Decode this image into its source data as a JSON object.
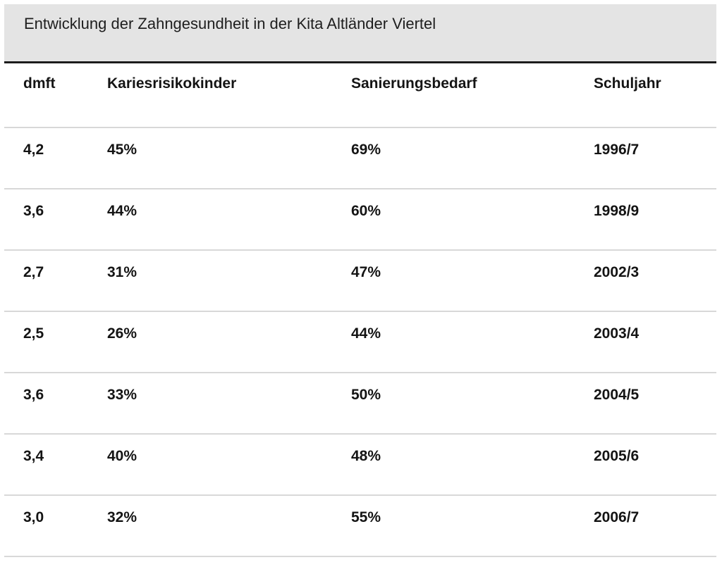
{
  "caption": "Entwicklung der Zahngesundheit in der Kita Altländer Viertel",
  "table": {
    "headers": [
      "dmft",
      "Kariesrisikokinder",
      "Sanierungsbedarf",
      "Schuljahr"
    ],
    "rows": [
      [
        "4,2",
        "45%",
        "69%",
        "1996/7"
      ],
      [
        "3,6",
        "44%",
        "60%",
        "1998/9"
      ],
      [
        "2,7",
        "31%",
        "47%",
        "2002/3"
      ],
      [
        "2,5",
        "26%",
        "44%",
        "2003/4"
      ],
      [
        "3,6",
        "33%",
        "50%",
        "2004/5"
      ],
      [
        "3,4",
        "40%",
        "48%",
        "2005/6"
      ],
      [
        "3,0",
        "32%",
        "55%",
        "2006/7"
      ]
    ]
  }
}
